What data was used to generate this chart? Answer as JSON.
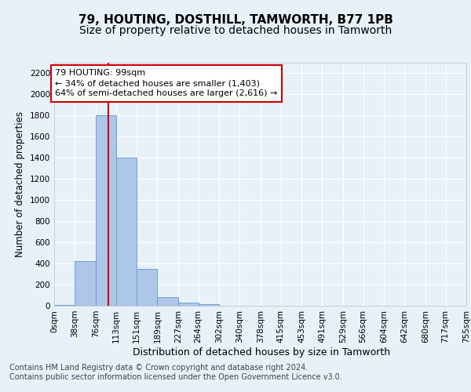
{
  "title": "79, HOUTING, DOSTHILL, TAMWORTH, B77 1PB",
  "subtitle": "Size of property relative to detached houses in Tamworth",
  "xlabel": "Distribution of detached houses by size in Tamworth",
  "ylabel": "Number of detached properties",
  "bar_edges": [
    0,
    38,
    76,
    113,
    151,
    189,
    227,
    264,
    302,
    340,
    378,
    415,
    453,
    491,
    529,
    566,
    604,
    642,
    680,
    717,
    755
  ],
  "bar_heights": [
    10,
    420,
    1800,
    1400,
    350,
    80,
    30,
    15,
    0,
    0,
    0,
    0,
    0,
    0,
    0,
    0,
    0,
    0,
    0,
    0
  ],
  "bar_color": "#aec6e8",
  "bar_edgecolor": "#5b9bd5",
  "subject_value": 99,
  "subject_line_color": "#cc0000",
  "annotation_line1": "79 HOUTING: 99sqm",
  "annotation_line2": "← 34% of detached houses are smaller (1,403)",
  "annotation_line3": "64% of semi-detached houses are larger (2,616) →",
  "annotation_boxcolor": "white",
  "annotation_edgecolor": "#cc0000",
  "ylim": [
    0,
    2300
  ],
  "yticks": [
    0,
    200,
    400,
    600,
    800,
    1000,
    1200,
    1400,
    1600,
    1800,
    2000,
    2200
  ],
  "tick_labels": [
    "0sqm",
    "38sqm",
    "76sqm",
    "113sqm",
    "151sqm",
    "189sqm",
    "227sqm",
    "264sqm",
    "302sqm",
    "340sqm",
    "378sqm",
    "415sqm",
    "453sqm",
    "491sqm",
    "529sqm",
    "566sqm",
    "604sqm",
    "642sqm",
    "680sqm",
    "717sqm",
    "755sqm"
  ],
  "footer_line1": "Contains HM Land Registry data © Crown copyright and database right 2024.",
  "footer_line2": "Contains public sector information licensed under the Open Government Licence v3.0.",
  "bg_color": "#e8f0f8",
  "plot_bg_color": "#e8f0f8",
  "grid_color": "white",
  "title_fontsize": 11,
  "subtitle_fontsize": 10,
  "ylabel_fontsize": 8.5,
  "xlabel_fontsize": 9,
  "tick_fontsize": 7.5,
  "footer_fontsize": 7,
  "annotation_fontsize": 8
}
